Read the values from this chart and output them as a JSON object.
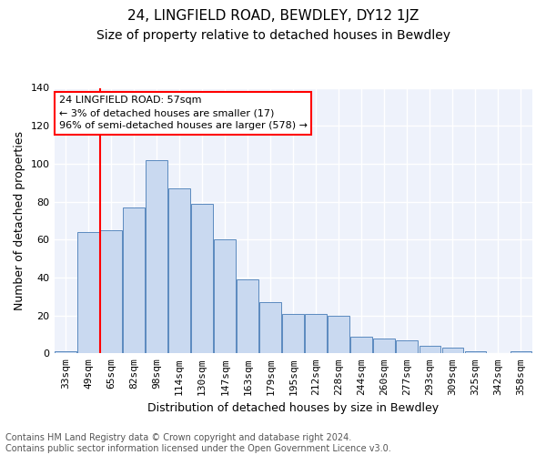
{
  "title": "24, LINGFIELD ROAD, BEWDLEY, DY12 1JZ",
  "subtitle": "Size of property relative to detached houses in Bewdley",
  "xlabel": "Distribution of detached houses by size in Bewdley",
  "ylabel": "Number of detached properties",
  "footer1": "Contains HM Land Registry data © Crown copyright and database right 2024.",
  "footer2": "Contains public sector information licensed under the Open Government Licence v3.0.",
  "categories": [
    "33sqm",
    "49sqm",
    "65sqm",
    "82sqm",
    "98sqm",
    "114sqm",
    "130sqm",
    "147sqm",
    "163sqm",
    "179sqm",
    "195sqm",
    "212sqm",
    "228sqm",
    "244sqm",
    "260sqm",
    "277sqm",
    "293sqm",
    "309sqm",
    "325sqm",
    "342sqm",
    "358sqm"
  ],
  "values": [
    1,
    64,
    65,
    77,
    102,
    87,
    79,
    60,
    39,
    27,
    21,
    21,
    20,
    9,
    8,
    7,
    4,
    3,
    1,
    0,
    1
  ],
  "bar_color": "#c9d9f0",
  "bar_edge_color": "#5a8abf",
  "annotation_line1": "24 LINGFIELD ROAD: 57sqm",
  "annotation_line2": "← 3% of detached houses are smaller (17)",
  "annotation_line3": "96% of semi-detached houses are larger (578) →",
  "annotation_box_color": "white",
  "annotation_box_edge_color": "red",
  "vline_x": 1.5,
  "vline_color": "red",
  "ylim": [
    0,
    140
  ],
  "yticks": [
    0,
    20,
    40,
    60,
    80,
    100,
    120,
    140
  ],
  "bg_color": "#eef2fb",
  "grid_color": "white",
  "title_fontsize": 11,
  "subtitle_fontsize": 10,
  "ylabel_fontsize": 9,
  "xlabel_fontsize": 9,
  "tick_fontsize": 8,
  "annot_fontsize": 8,
  "footer_fontsize": 7
}
